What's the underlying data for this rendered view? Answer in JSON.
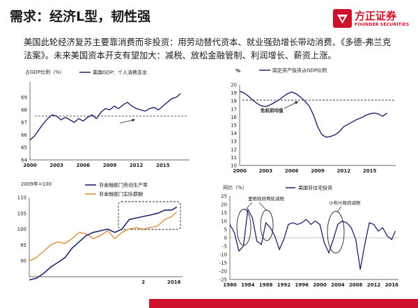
{
  "header": {
    "title": "需求：经济L型，韧性强"
  },
  "logo": {
    "name": "方正证券",
    "subtitle": "FOUNDER SECURITIES",
    "brand_color": "#d0112b"
  },
  "intro": {
    "text": "美国此轮经济复苏主要靠消费而非投资：用劳动替代资本、就业强劲增长带动消费、《多德-弗兰克法案》。未来美国资本开支有望加大：减税、放松金融管制、利润增长、薪资上涨。"
  },
  "charts": {
    "c1": {
      "unit_label": "占GDP比例（%）",
      "legend": "美国GDP：个人消费支出",
      "y_ticks": [
        "69",
        "68",
        "67",
        "66",
        "65",
        "64"
      ],
      "x_ticks": [
        "2000",
        "2003",
        "2006",
        "2009",
        "2012",
        "2015"
      ]
    },
    "c2": {
      "unit_label": "%",
      "legend": "固定资产投资占GDP比例",
      "annotation": "危机前均值",
      "y_ticks": [
        "20",
        "19",
        "18",
        "17",
        "16",
        "15",
        "14",
        "13",
        "12",
        "11",
        "10"
      ],
      "x_ticks": [
        "2000",
        "2003",
        "2006",
        "2009",
        "2012",
        "2015"
      ]
    },
    "c3": {
      "unit_label": "2009年=100",
      "legend_1": "非金融部门劳动生产率",
      "legend_2": "非金融部门实际薪酬",
      "y_ticks": [
        "110",
        "105",
        "100",
        "95",
        "90"
      ],
      "x_ticks": [
        "2",
        "2016"
      ]
    },
    "c4": {
      "unit_label": "同比（%）",
      "legend": "美国非住宅投资",
      "annotation_1": "里根政府两轮减税",
      "annotation_2": "小布什政府减税",
      "y_ticks": [
        "25",
        "20",
        "15",
        "10",
        "5",
        "0",
        "-5",
        "-10",
        "-15",
        "-20",
        "-25"
      ],
      "x_ticks": [
        "1980",
        "1984",
        "1988",
        "1992",
        "1996",
        "2000",
        "2004",
        "2008",
        "2012",
        "2016"
      ]
    }
  },
  "chart_data": [
    {
      "type": "line",
      "ylabel": "占GDP比例（%）",
      "ylim": [
        64,
        70
      ],
      "series": [
        {
          "name": "美国GDP：个人消费支出",
          "color": "#1c2270",
          "x": [
            2000,
            2000.5,
            2001,
            2001.5,
            2002,
            2002.5,
            2003,
            2003.5,
            2004,
            2004.5,
            2005,
            2005.5,
            2006,
            2006.5,
            2007,
            2007.5,
            2008,
            2008.5,
            2009,
            2009.5,
            2010,
            2010.5,
            2011,
            2011.5,
            2012,
            2012.5,
            2013,
            2013.5,
            2014,
            2014.5,
            2015,
            2015.5,
            2016,
            2016.5,
            2017
          ],
          "values": [
            65.6,
            65.9,
            66.4,
            66.9,
            67.3,
            67.6,
            67.5,
            67.2,
            67.4,
            67.2,
            67.0,
            67.3,
            67.1,
            67.4,
            67.6,
            67.3,
            67.8,
            68.1,
            68.0,
            68.3,
            68.1,
            68.4,
            68.6,
            68.3,
            68.1,
            68.0,
            67.9,
            68.1,
            68.2,
            68.0,
            68.3,
            68.6,
            68.9,
            69.0,
            69.3
          ]
        }
      ],
      "reference_line": 67.5
    },
    {
      "type": "line",
      "ylabel": "%",
      "ylim": [
        10,
        20
      ],
      "series": [
        {
          "name": "固定资产投资占GDP比例",
          "color": "#1c2270",
          "x": [
            2000,
            2000.5,
            2001,
            2001.5,
            2002,
            2002.5,
            2003,
            2003.5,
            2004,
            2004.5,
            2005,
            2005.5,
            2006,
            2006.5,
            2007,
            2007.5,
            2008,
            2008.5,
            2009,
            2009.5,
            2010,
            2010.5,
            2011,
            2011.5,
            2012,
            2012.5,
            2013,
            2013.5,
            2014,
            2014.5,
            2015,
            2015.5,
            2016,
            2016.5,
            2017
          ],
          "values": [
            19.2,
            19.0,
            18.6,
            18.1,
            17.7,
            17.4,
            17.3,
            17.5,
            17.8,
            18.1,
            18.5,
            18.9,
            19.1,
            18.9,
            18.5,
            18.0,
            17.4,
            16.3,
            14.8,
            13.8,
            13.5,
            13.6,
            13.8,
            14.2,
            14.8,
            15.1,
            15.4,
            15.7,
            15.9,
            16.2,
            16.4,
            16.5,
            16.4,
            16.1,
            16.5
          ]
        }
      ],
      "reference_line": 18.1
    },
    {
      "type": "line",
      "ylabel": "2009年=100",
      "ylim": [
        85,
        110
      ],
      "series": [
        {
          "name": "非金融部门劳动生产率",
          "color": "#1c2270",
          "x": [
            1996,
            1997,
            1998,
            1999,
            2000,
            2001,
            2002,
            2003,
            2004,
            2005,
            2006,
            2007,
            2008,
            2009,
            2010,
            2011,
            2012,
            2013,
            2014,
            2015,
            2016,
            2016.7
          ],
          "values": [
            84,
            84.5,
            86,
            88,
            89.5,
            91,
            94,
            96,
            98,
            99,
            99.5,
            100,
            99,
            100,
            103,
            103.5,
            104,
            104.5,
            105,
            106,
            106,
            107
          ]
        },
        {
          "name": "非金融部门实际薪酬",
          "color": "#e08c3a",
          "x": [
            1996,
            1997,
            1998,
            1999,
            2000,
            2001,
            2002,
            2003,
            2004,
            2005,
            2006,
            2007,
            2008,
            2009,
            2010,
            2011,
            2012,
            2013,
            2014,
            2015,
            2016,
            2016.7
          ],
          "values": [
            90,
            91,
            93,
            95,
            96,
            95.5,
            97,
            99,
            98.5,
            97,
            98,
            99.5,
            97,
            99,
            100,
            100.5,
            100,
            100.5,
            101,
            103,
            104,
            105.5
          ]
        }
      ]
    },
    {
      "type": "line",
      "ylabel": "同比（%）",
      "ylim": [
        -25,
        25
      ],
      "series": [
        {
          "name": "美国非住宅投资",
          "color": "#1c2270",
          "x": [
            1980,
            1981,
            1982,
            1983,
            1984,
            1985,
            1986,
            1987,
            1988,
            1989,
            1990,
            1991,
            1992,
            1993,
            1994,
            1995,
            1996,
            1997,
            1998,
            1999,
            2000,
            2001,
            2002,
            2003,
            2004,
            2005,
            2006,
            2007,
            2008,
            2009,
            2010,
            2011,
            2012,
            2013,
            2014,
            2015,
            2016,
            2016.8
          ],
          "values": [
            8,
            3,
            -8,
            -5,
            17,
            12,
            -2,
            -4,
            9,
            6,
            1,
            -7,
            -1,
            8,
            9,
            8,
            9,
            11,
            8,
            10,
            8,
            -3,
            -9,
            -1,
            8,
            10,
            9,
            6,
            -1,
            -19,
            -4,
            9,
            8,
            4,
            6,
            1,
            -1,
            4
          ]
        }
      ]
    }
  ]
}
